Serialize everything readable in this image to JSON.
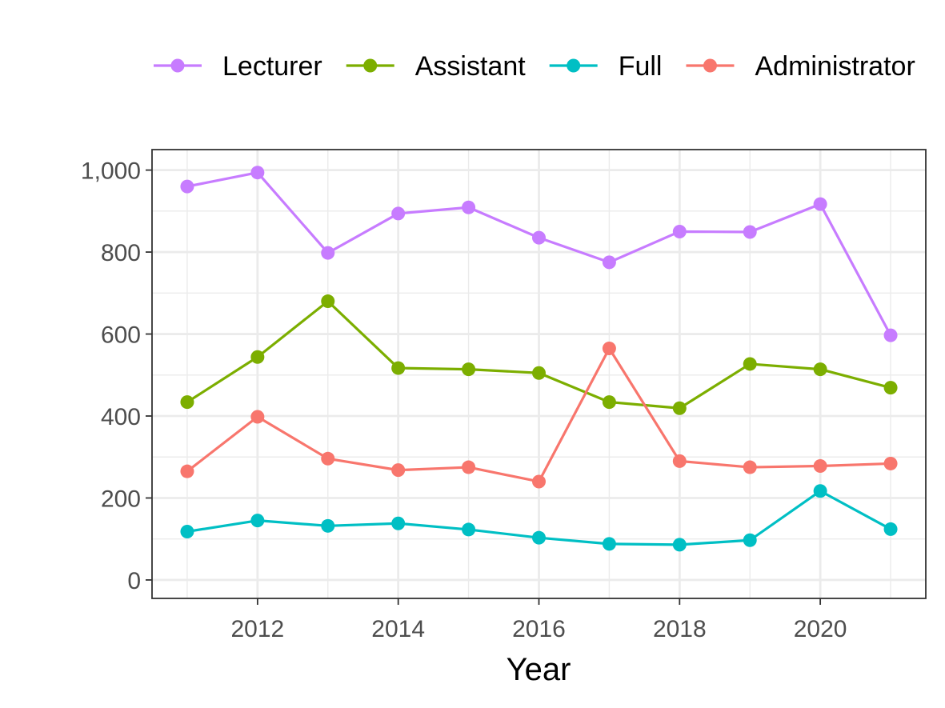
{
  "chart_data": {
    "type": "line",
    "title": "",
    "xlabel": "Year",
    "ylabel": "",
    "x": [
      2011,
      2012,
      2013,
      2014,
      2015,
      2016,
      2017,
      2018,
      2019,
      2020,
      2021
    ],
    "xlim": [
      2010.5,
      2021.5
    ],
    "ylim": [
      -45,
      1050
    ],
    "x_ticks": [
      2012,
      2014,
      2016,
      2018,
      2020
    ],
    "x_tick_labels": [
      "2012",
      "2014",
      "2016",
      "2018",
      "2020"
    ],
    "y_ticks": [
      0,
      200,
      400,
      600,
      800,
      1000
    ],
    "y_tick_labels": [
      "0",
      "200",
      "400",
      "600",
      "800",
      "1,000"
    ],
    "grid": true,
    "legend_position": "top",
    "series": [
      {
        "name": "Lecturer",
        "color": "#C77CFF",
        "values": [
          960,
          994,
          798,
          894,
          909,
          835,
          775,
          850,
          849,
          917,
          597
        ]
      },
      {
        "name": "Assistant",
        "color": "#7CAE00",
        "values": [
          434,
          544,
          680,
          517,
          514,
          505,
          434,
          419,
          527,
          514,
          469
        ]
      },
      {
        "name": "Full",
        "color": "#00BFC4",
        "values": [
          118,
          145,
          132,
          138,
          123,
          103,
          88,
          86,
          97,
          217,
          124
        ]
      },
      {
        "name": "Administrator",
        "color": "#F8766D",
        "values": [
          265,
          398,
          296,
          268,
          275,
          240,
          565,
          290,
          275,
          278,
          284
        ]
      }
    ]
  }
}
